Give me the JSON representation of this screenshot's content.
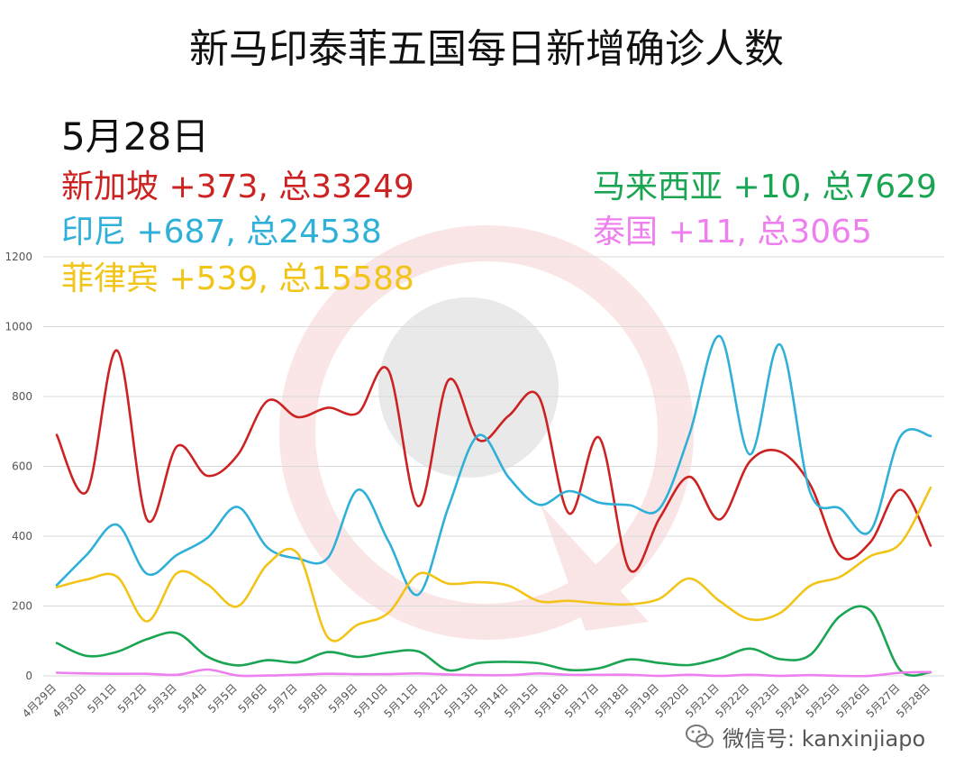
{
  "title": "新马印泰菲五国每日新增确诊人数",
  "date_label": "5月28日",
  "legend": [
    {
      "id": "sg",
      "country": "新加坡",
      "stats": "+373, 总33249",
      "color": "#cc2222"
    },
    {
      "id": "id",
      "country": "印尼",
      "stats": "+687, 总24538",
      "color": "#2fb0d8"
    },
    {
      "id": "ph",
      "country": "菲律宾",
      "stats": "+539, 总15588",
      "color": "#f2c418"
    },
    {
      "id": "my",
      "country": "马来西亚",
      "stats": "+10, 总7629",
      "color": "#1aa552"
    },
    {
      "id": "th",
      "country": "泰国",
      "stats": "+11, 总3065",
      "color": "#ee7fee"
    }
  ],
  "footer": {
    "text": "微信号: kanxinjiapo",
    "icon": "wechat-icon"
  },
  "chart_data": {
    "type": "line",
    "title": "新马印泰菲五国每日新增确诊人数",
    "xlabel": "",
    "ylabel": "",
    "ylim": [
      0,
      1200
    ],
    "yticks": [
      0,
      200,
      400,
      600,
      800,
      1000,
      1200
    ],
    "grid": true,
    "legend_position": "top",
    "x": [
      "4月29日",
      "4月30日",
      "5月1日",
      "5月2日",
      "5月3日",
      "5月4日",
      "5月5日",
      "5月6日",
      "5月7日",
      "5月8日",
      "5月9日",
      "5月10日",
      "5月11日",
      "5月12日",
      "5月13日",
      "5月14日",
      "5月15日",
      "5月16日",
      "5月17日",
      "5月18日",
      "5月19日",
      "5月20日",
      "5月21日",
      "5月22日",
      "5月23日",
      "5月24日",
      "5月25日",
      "5月26日",
      "5月27日",
      "5月28日"
    ],
    "series": [
      {
        "name": "新加坡",
        "color": "#cc2222",
        "values": [
          690,
          528,
          932,
          447,
          658,
          573,
          632,
          788,
          741,
          768,
          753,
          876,
          486,
          847,
          675,
          745,
          799,
          465,
          682,
          305,
          451,
          570,
          448,
          614,
          642,
          548,
          344,
          383,
          533,
          373
        ]
      },
      {
        "name": "印尼",
        "color": "#2fb0d8",
        "values": [
          260,
          347,
          433,
          292,
          347,
          395,
          484,
          367,
          336,
          338,
          533,
          387,
          233,
          484,
          689,
          568,
          490,
          529,
          496,
          489,
          479,
          693,
          973,
          634,
          949,
          526,
          479,
          415,
          686,
          687
        ]
      },
      {
        "name": "菲律宾",
        "color": "#f2c418",
        "values": [
          254,
          276,
          284,
          156,
          295,
          262,
          199,
          320,
          350,
          110,
          147,
          180,
          292,
          264,
          268,
          258,
          214,
          215,
          208,
          205,
          221,
          279,
          214,
          162,
          180,
          258,
          284,
          343,
          380,
          539
        ]
      },
      {
        "name": "马来西亚",
        "color": "#1aa552",
        "values": [
          94,
          57,
          69,
          105,
          122,
          55,
          30,
          45,
          39,
          68,
          54,
          67,
          70,
          16,
          37,
          40,
          36,
          17,
          22,
          47,
          37,
          31,
          50,
          78,
          48,
          60,
          172,
          187,
          15,
          10
        ]
      },
      {
        "name": "泰国",
        "color": "#ee7fee",
        "values": [
          9,
          7,
          6,
          6,
          3,
          18,
          1,
          1,
          3,
          6,
          5,
          5,
          7,
          4,
          2,
          2,
          7,
          3,
          3,
          3,
          0,
          3,
          0,
          3,
          0,
          2,
          0,
          0,
          9,
          11
        ]
      }
    ]
  }
}
